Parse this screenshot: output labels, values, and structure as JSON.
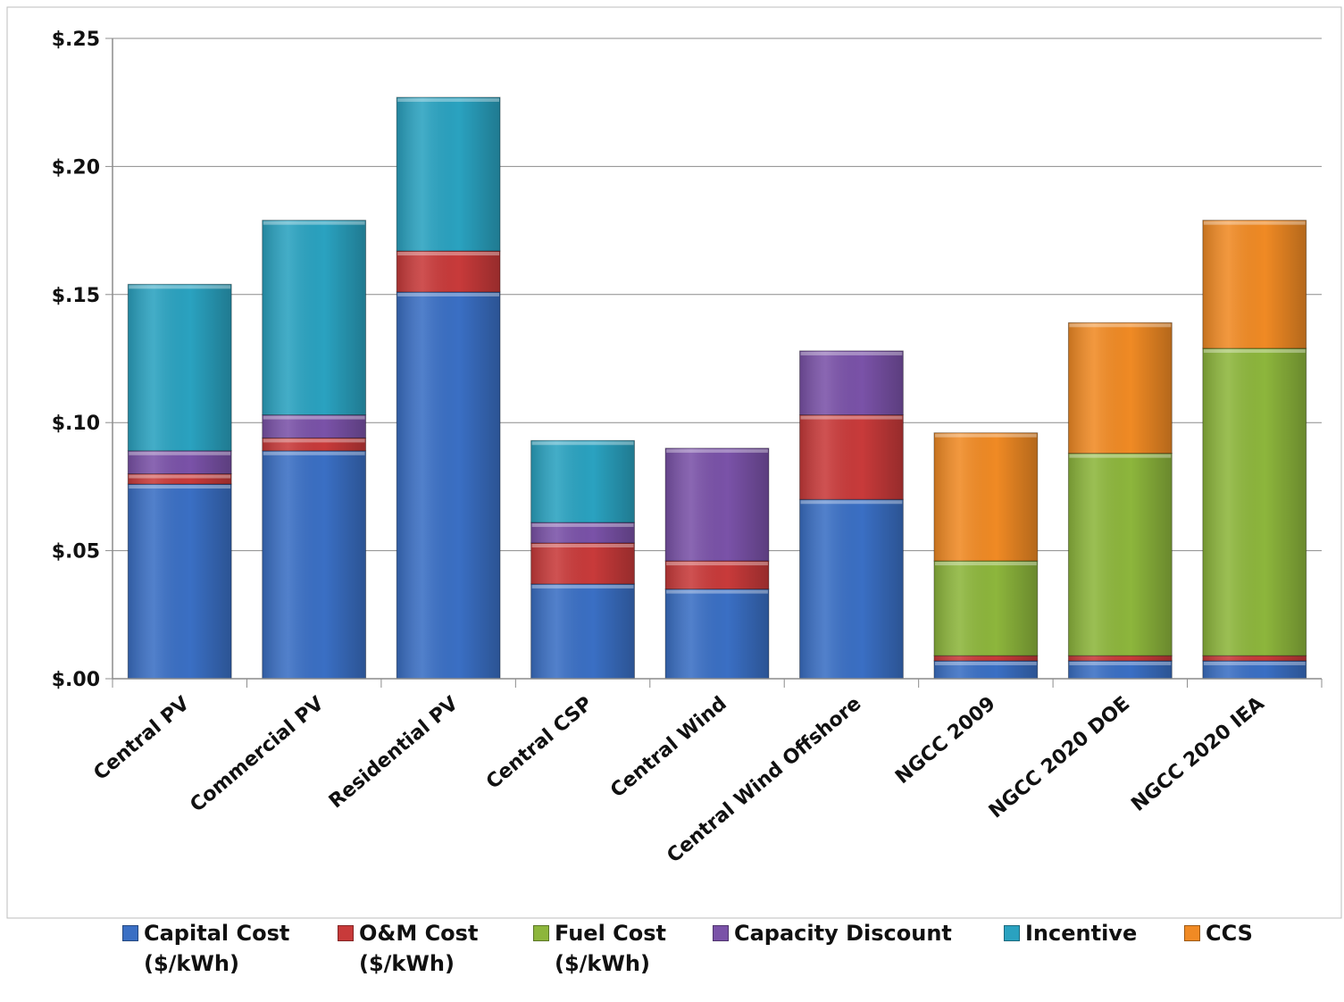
{
  "chart_data": {
    "type": "bar",
    "stacked": true,
    "categories": [
      "Central PV",
      "Commercial PV",
      "Residential PV",
      "Central CSP",
      "Central Wind",
      "Central Wind Offshore",
      "NGCC 2009",
      "NGCC 2020 DOE",
      "NGCC 2020 IEA"
    ],
    "series": [
      {
        "name": "Capital Cost",
        "unit": "($/kWh)",
        "color": "#3A6FC4",
        "values": [
          0.076,
          0.089,
          0.151,
          0.037,
          0.035,
          0.07,
          0.007,
          0.007,
          0.007
        ]
      },
      {
        "name": "O&M Cost",
        "unit": "($/kWh)",
        "color": "#C83A3A",
        "values": [
          0.004,
          0.005,
          0.016,
          0.016,
          0.011,
          0.033,
          0.002,
          0.002,
          0.002
        ]
      },
      {
        "name": "Fuel Cost",
        "unit": "($/kWh)",
        "color": "#8DB63C",
        "values": [
          0,
          0,
          0,
          0,
          0,
          0,
          0.037,
          0.079,
          0.12
        ]
      },
      {
        "name": "Capacity Discount",
        "unit": "",
        "color": "#7A52A8",
        "values": [
          0.009,
          0.009,
          0,
          0.008,
          0.044,
          0.025,
          0,
          0,
          0
        ]
      },
      {
        "name": "Incentive",
        "unit": "",
        "color": "#2AA2C0",
        "values": [
          0.065,
          0.076,
          0.06,
          0.032,
          0,
          0,
          0,
          0,
          0
        ]
      },
      {
        "name": "CCS",
        "unit": "",
        "color": "#F08A24",
        "values": [
          0,
          0,
          0,
          0,
          0,
          0,
          0.05,
          0.051,
          0.05
        ]
      }
    ],
    "y_ticks": [
      "$.00",
      "$.05",
      "$.10",
      "$.15",
      "$.20",
      "$.25"
    ],
    "ylim": [
      0,
      0.25
    ],
    "title": "",
    "xlabel": "",
    "ylabel": "",
    "grid": true,
    "legend_position": "bottom"
  }
}
